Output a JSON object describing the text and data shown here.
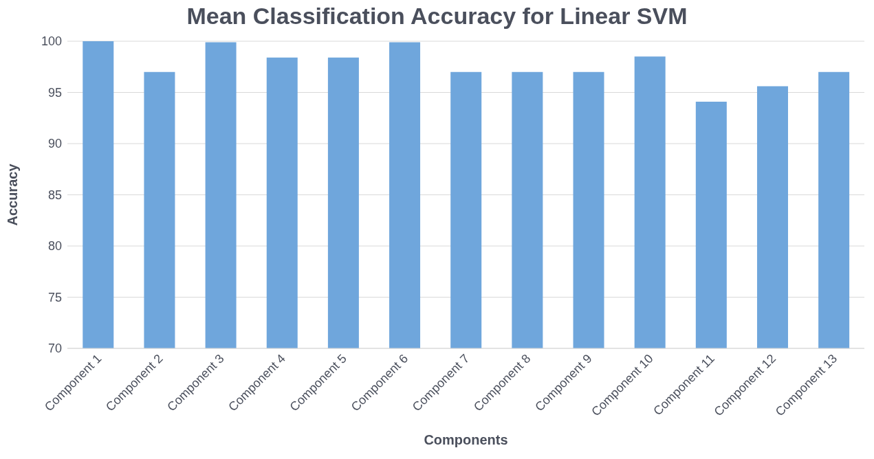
{
  "chart_data": {
    "type": "bar",
    "title": "Mean Classification Accuracy for Linear SVM",
    "xlabel": "Components",
    "ylabel": "Accuracy",
    "categories": [
      "Component 1",
      "Component 2",
      "Component 3",
      "Component 4",
      "Component 5",
      "Component 6",
      "Component 7",
      "Component 8",
      "Component 9",
      "Component 10",
      "Component 11",
      "Component 12",
      "Component 13"
    ],
    "values": [
      100,
      97.0,
      99.9,
      98.4,
      98.4,
      99.9,
      97.0,
      97.0,
      97.0,
      98.5,
      94.1,
      95.6,
      97.0
    ],
    "color": "#6fa6dc",
    "ylim": [
      70,
      100
    ],
    "yticks": [
      70,
      75,
      80,
      85,
      90,
      95,
      100
    ],
    "grid": "y"
  }
}
